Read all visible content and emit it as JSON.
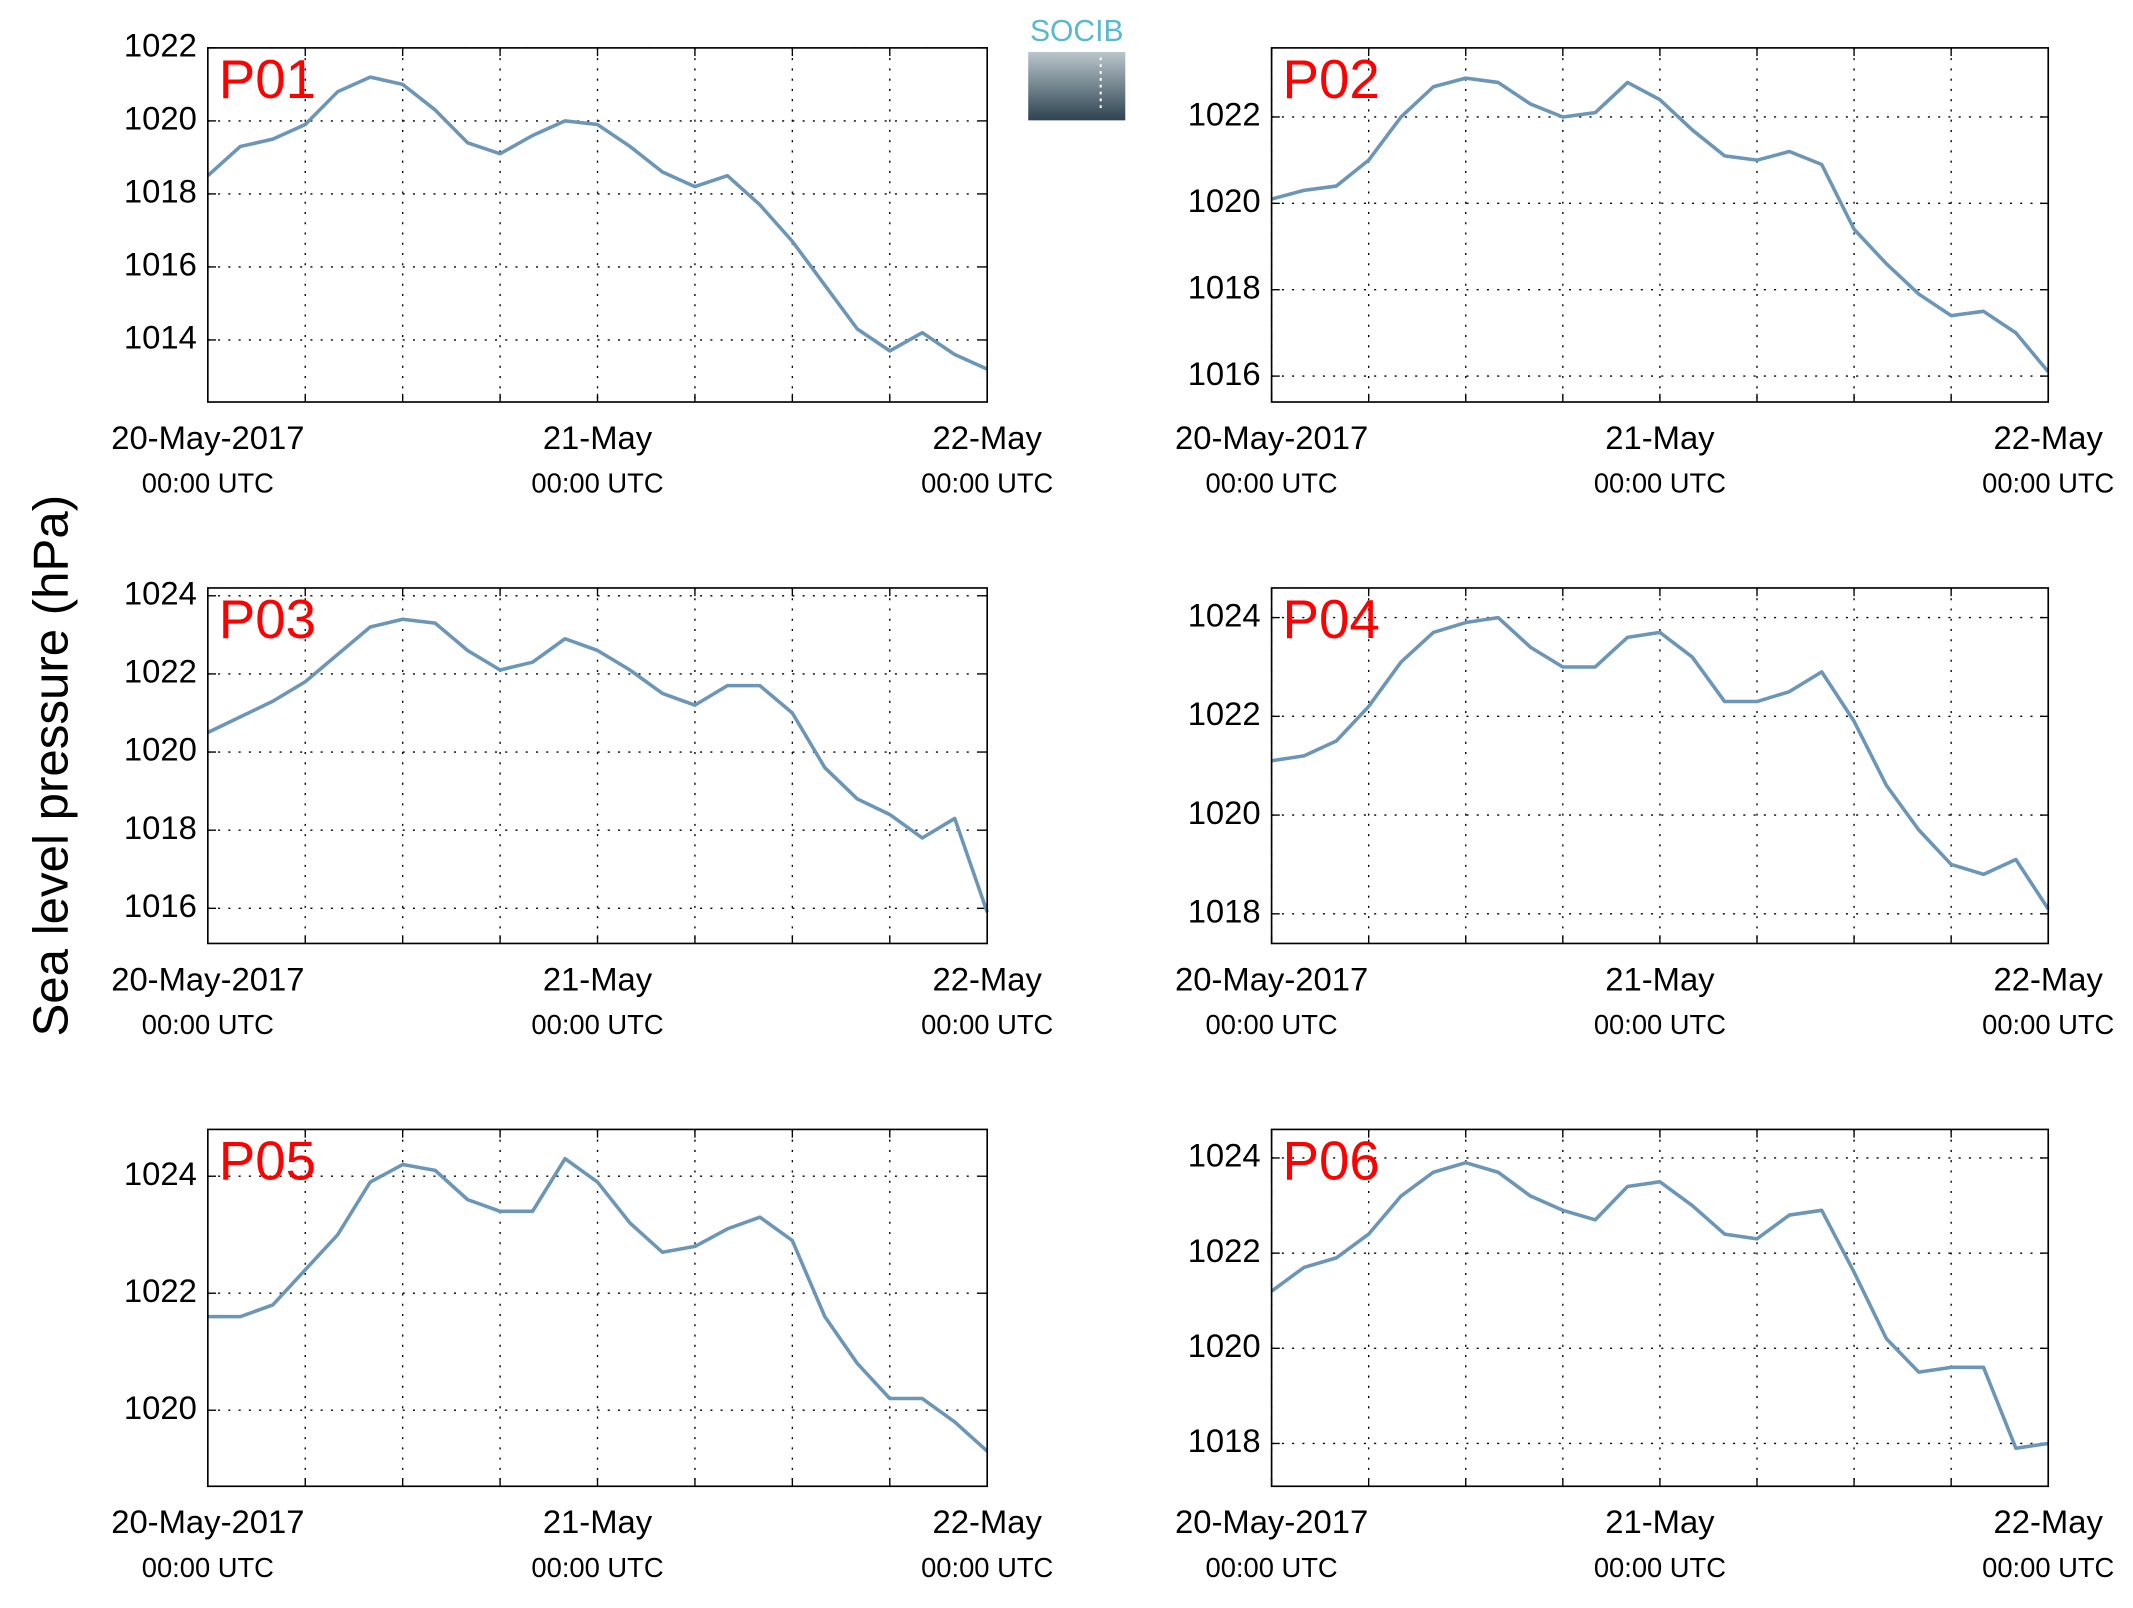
{
  "ylabel": "Sea level pressure (hPa)",
  "logo": "SOCIB",
  "chart_data": [
    {
      "type": "line",
      "title": "P01",
      "x": [
        0,
        2,
        4,
        6,
        8,
        10,
        12,
        14,
        16,
        18,
        20,
        22,
        24,
        26,
        28,
        30,
        32,
        34,
        36,
        38,
        40,
        42,
        44,
        46,
        48
      ],
      "values": [
        1018.5,
        1019.3,
        1019.5,
        1019.9,
        1020.8,
        1021.2,
        1021.0,
        1020.3,
        1019.4,
        1019.1,
        1019.6,
        1020.0,
        1019.9,
        1019.3,
        1018.6,
        1018.2,
        1018.5,
        1017.7,
        1016.7,
        1015.5,
        1014.3,
        1013.7,
        1014.2,
        1013.6,
        1013.2
      ],
      "color": "#6b96b7",
      "xlim": [
        0,
        48
      ],
      "xticks": [
        {
          "value": 0,
          "label": "20-May-2017",
          "sublabel": "00:00 UTC"
        },
        {
          "value": 24,
          "label": "21-May",
          "sublabel": "00:00 UTC"
        },
        {
          "value": 48,
          "label": "22-May",
          "sublabel": "00:00 UTC"
        }
      ],
      "xminor_ticks": [
        6,
        12,
        18,
        30,
        36,
        42
      ],
      "ylim": [
        1012.3,
        1022
      ],
      "yticks": [
        1014,
        1016,
        1018,
        1020,
        1022
      ],
      "grid": true
    },
    {
      "type": "line",
      "title": "P02",
      "x": [
        0,
        2,
        4,
        6,
        8,
        10,
        12,
        14,
        16,
        18,
        20,
        22,
        24,
        26,
        28,
        30,
        32,
        34,
        36,
        38,
        40,
        42,
        44,
        46,
        48
      ],
      "values": [
        1020.1,
        1020.3,
        1020.4,
        1021.0,
        1022.0,
        1022.7,
        1022.9,
        1022.8,
        1022.3,
        1022.0,
        1022.1,
        1022.8,
        1022.4,
        1021.7,
        1021.1,
        1021.0,
        1021.2,
        1020.9,
        1019.4,
        1018.6,
        1017.9,
        1017.4,
        1017.5,
        1017.0,
        1016.1
      ],
      "color": "#6b96b7",
      "xlim": [
        0,
        48
      ],
      "xticks": [
        {
          "value": 0,
          "label": "20-May-2017",
          "sublabel": "00:00 UTC"
        },
        {
          "value": 24,
          "label": "21-May",
          "sublabel": "00:00 UTC"
        },
        {
          "value": 48,
          "label": "22-May",
          "sublabel": "00:00 UTC"
        }
      ],
      "xminor_ticks": [
        6,
        12,
        18,
        30,
        36,
        42
      ],
      "ylim": [
        1015.4,
        1023.6
      ],
      "yticks": [
        1016,
        1018,
        1020,
        1022
      ],
      "grid": true
    },
    {
      "type": "line",
      "title": "P03",
      "x": [
        0,
        2,
        4,
        6,
        8,
        10,
        12,
        14,
        16,
        18,
        20,
        22,
        24,
        26,
        28,
        30,
        32,
        34,
        36,
        38,
        40,
        42,
        44,
        46,
        48
      ],
      "values": [
        1020.5,
        1020.9,
        1021.3,
        1021.8,
        1022.5,
        1023.2,
        1023.4,
        1023.3,
        1022.6,
        1022.1,
        1022.3,
        1022.9,
        1022.6,
        1022.1,
        1021.5,
        1021.2,
        1021.7,
        1021.7,
        1021.0,
        1019.6,
        1018.8,
        1018.4,
        1017.8,
        1018.3,
        1015.9
      ],
      "color": "#6b96b7",
      "xlim": [
        0,
        48
      ],
      "xticks": [
        {
          "value": 0,
          "label": "20-May-2017",
          "sublabel": "00:00 UTC"
        },
        {
          "value": 24,
          "label": "21-May",
          "sublabel": "00:00 UTC"
        },
        {
          "value": 48,
          "label": "22-May",
          "sublabel": "00:00 UTC"
        }
      ],
      "xminor_ticks": [
        6,
        12,
        18,
        30,
        36,
        42
      ],
      "ylim": [
        1015.1,
        1024.2
      ],
      "yticks": [
        1016,
        1018,
        1020,
        1022,
        1024
      ],
      "grid": true
    },
    {
      "type": "line",
      "title": "P04",
      "x": [
        0,
        2,
        4,
        6,
        8,
        10,
        12,
        14,
        16,
        18,
        20,
        22,
        24,
        26,
        28,
        30,
        32,
        34,
        36,
        38,
        40,
        42,
        44,
        46,
        48
      ],
      "values": [
        1021.1,
        1021.2,
        1021.5,
        1022.2,
        1023.1,
        1023.7,
        1023.9,
        1024.0,
        1023.4,
        1023.0,
        1023.0,
        1023.6,
        1023.7,
        1023.2,
        1022.3,
        1022.3,
        1022.5,
        1022.9,
        1021.9,
        1020.6,
        1019.7,
        1019.0,
        1018.8,
        1019.1,
        1018.1
      ],
      "color": "#6b96b7",
      "xlim": [
        0,
        48
      ],
      "xticks": [
        {
          "value": 0,
          "label": "20-May-2017",
          "sublabel": "00:00 UTC"
        },
        {
          "value": 24,
          "label": "21-May",
          "sublabel": "00:00 UTC"
        },
        {
          "value": 48,
          "label": "22-May",
          "sublabel": "00:00 UTC"
        }
      ],
      "xminor_ticks": [
        6,
        12,
        18,
        30,
        36,
        42
      ],
      "ylim": [
        1017.4,
        1024.6
      ],
      "yticks": [
        1018,
        1020,
        1022,
        1024
      ],
      "grid": true
    },
    {
      "type": "line",
      "title": "P05",
      "x": [
        0,
        2,
        4,
        6,
        8,
        10,
        12,
        14,
        16,
        18,
        20,
        22,
        24,
        26,
        28,
        30,
        32,
        34,
        36,
        38,
        40,
        42,
        44,
        46,
        48
      ],
      "values": [
        1021.6,
        1021.6,
        1021.8,
        1022.4,
        1023.0,
        1023.9,
        1024.2,
        1024.1,
        1023.6,
        1023.4,
        1023.4,
        1024.3,
        1023.9,
        1023.2,
        1022.7,
        1022.8,
        1023.1,
        1023.3,
        1022.9,
        1021.6,
        1020.8,
        1020.2,
        1020.2,
        1019.8,
        1019.3
      ],
      "color": "#6b96b7",
      "xlim": [
        0,
        48
      ],
      "xticks": [
        {
          "value": 0,
          "label": "20-May-2017",
          "sublabel": "00:00 UTC"
        },
        {
          "value": 24,
          "label": "21-May",
          "sublabel": "00:00 UTC"
        },
        {
          "value": 48,
          "label": "22-May",
          "sublabel": "00:00 UTC"
        }
      ],
      "xminor_ticks": [
        6,
        12,
        18,
        30,
        36,
        42
      ],
      "ylim": [
        1018.7,
        1024.8
      ],
      "yticks": [
        1020,
        1022,
        1024
      ],
      "grid": true
    },
    {
      "type": "line",
      "title": "P06",
      "x": [
        0,
        2,
        4,
        6,
        8,
        10,
        12,
        14,
        16,
        18,
        20,
        22,
        24,
        26,
        28,
        30,
        32,
        34,
        36,
        38,
        40,
        42,
        44,
        46,
        48
      ],
      "values": [
        1021.2,
        1021.7,
        1021.9,
        1022.4,
        1023.2,
        1023.7,
        1023.9,
        1023.7,
        1023.2,
        1022.9,
        1022.7,
        1023.4,
        1023.5,
        1023.0,
        1022.4,
        1022.3,
        1022.8,
        1022.9,
        1021.6,
        1020.2,
        1019.5,
        1019.6,
        1019.6,
        1017.9,
        1018.0
      ],
      "color": "#6b96b7",
      "xlim": [
        0,
        48
      ],
      "xticks": [
        {
          "value": 0,
          "label": "20-May-2017",
          "sublabel": "00:00 UTC"
        },
        {
          "value": 24,
          "label": "21-May",
          "sublabel": "00:00 UTC"
        },
        {
          "value": 48,
          "label": "22-May",
          "sublabel": "00:00 UTC"
        }
      ],
      "xminor_ticks": [
        6,
        12,
        18,
        30,
        36,
        42
      ],
      "ylim": [
        1017.1,
        1024.6
      ],
      "yticks": [
        1018,
        1020,
        1022,
        1024
      ],
      "grid": true
    }
  ]
}
